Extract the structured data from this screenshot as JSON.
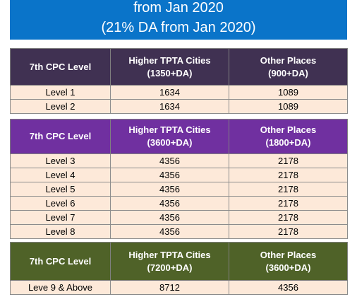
{
  "banner": {
    "line1": "from Jan 2020",
    "line2": "(21% DA from Jan 2020)"
  },
  "colors": {
    "banner": "#0a74c9",
    "table1_header": "#403152",
    "table2_header": "#7030a0",
    "table3_header": "#4f6228",
    "row_fill": "#fde9d9"
  },
  "tables": [
    {
      "header": {
        "level": "7th CPC Level",
        "higher": "Higher TPTA Cities",
        "higher_rate": "(1350+DA)",
        "other": "Other Places",
        "other_rate": "(900+DA)"
      },
      "rows": [
        {
          "level": "Level 1",
          "higher": "1634",
          "other": "1089"
        },
        {
          "level": "Level 2",
          "higher": "1634",
          "other": "1089"
        }
      ]
    },
    {
      "header": {
        "level": "7th CPC Level",
        "higher": "Higher TPTA Cities",
        "higher_rate": "(3600+DA)",
        "other": "Other Places",
        "other_rate": "(1800+DA)"
      },
      "rows": [
        {
          "level": "Level 3",
          "higher": "4356",
          "other": "2178"
        },
        {
          "level": "Level 4",
          "higher": "4356",
          "other": "2178"
        },
        {
          "level": "Level 5",
          "higher": "4356",
          "other": "2178"
        },
        {
          "level": "Level 6",
          "higher": "4356",
          "other": "2178"
        },
        {
          "level": "Level 7",
          "higher": "4356",
          "other": "2178"
        },
        {
          "level": "Level 8",
          "higher": "4356",
          "other": "2178"
        }
      ]
    },
    {
      "header": {
        "level": "7th CPC Level",
        "higher": "Higher TPTA Cities",
        "higher_rate": "(7200+DA)",
        "other": "Other Places",
        "other_rate": "(3600+DA)"
      },
      "rows": [
        {
          "level": "Leve 9 & Above",
          "higher": "8712",
          "other": "4356"
        }
      ]
    }
  ]
}
